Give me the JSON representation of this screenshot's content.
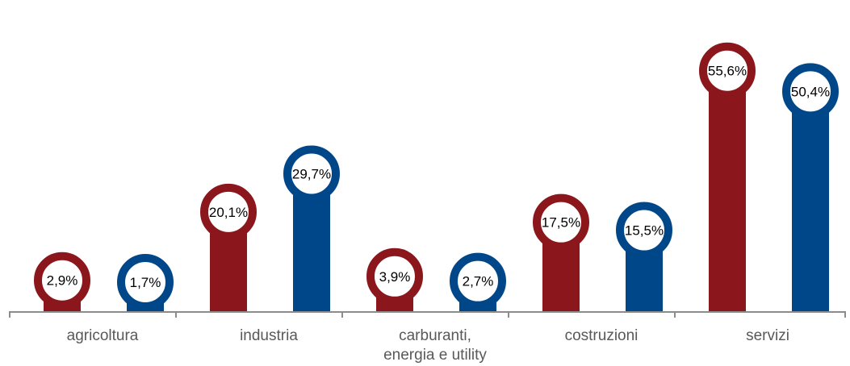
{
  "chart_data": {
    "type": "bar",
    "categories": [
      [
        "agricoltura"
      ],
      [
        "industria"
      ],
      [
        "carburanti,",
        "energia e utility"
      ],
      [
        "costruzioni"
      ],
      [
        "servizi"
      ]
    ],
    "series": [
      {
        "color": "#8b161b",
        "values": [
          2.9,
          20.1,
          3.9,
          17.5,
          55.6
        ],
        "labels": [
          "2,9%",
          "20,1%",
          "3,9%",
          "17,5%",
          "55,6%"
        ]
      },
      {
        "color": "#00478a",
        "values": [
          1.7,
          29.7,
          2.7,
          15.5,
          50.4
        ],
        "labels": [
          "1,7%",
          "29,7%",
          "2,7%",
          "15,5%",
          "50,4%"
        ]
      }
    ],
    "ylim": [
      0,
      60
    ],
    "grid": false,
    "axis_color": "#8c8c8c"
  }
}
